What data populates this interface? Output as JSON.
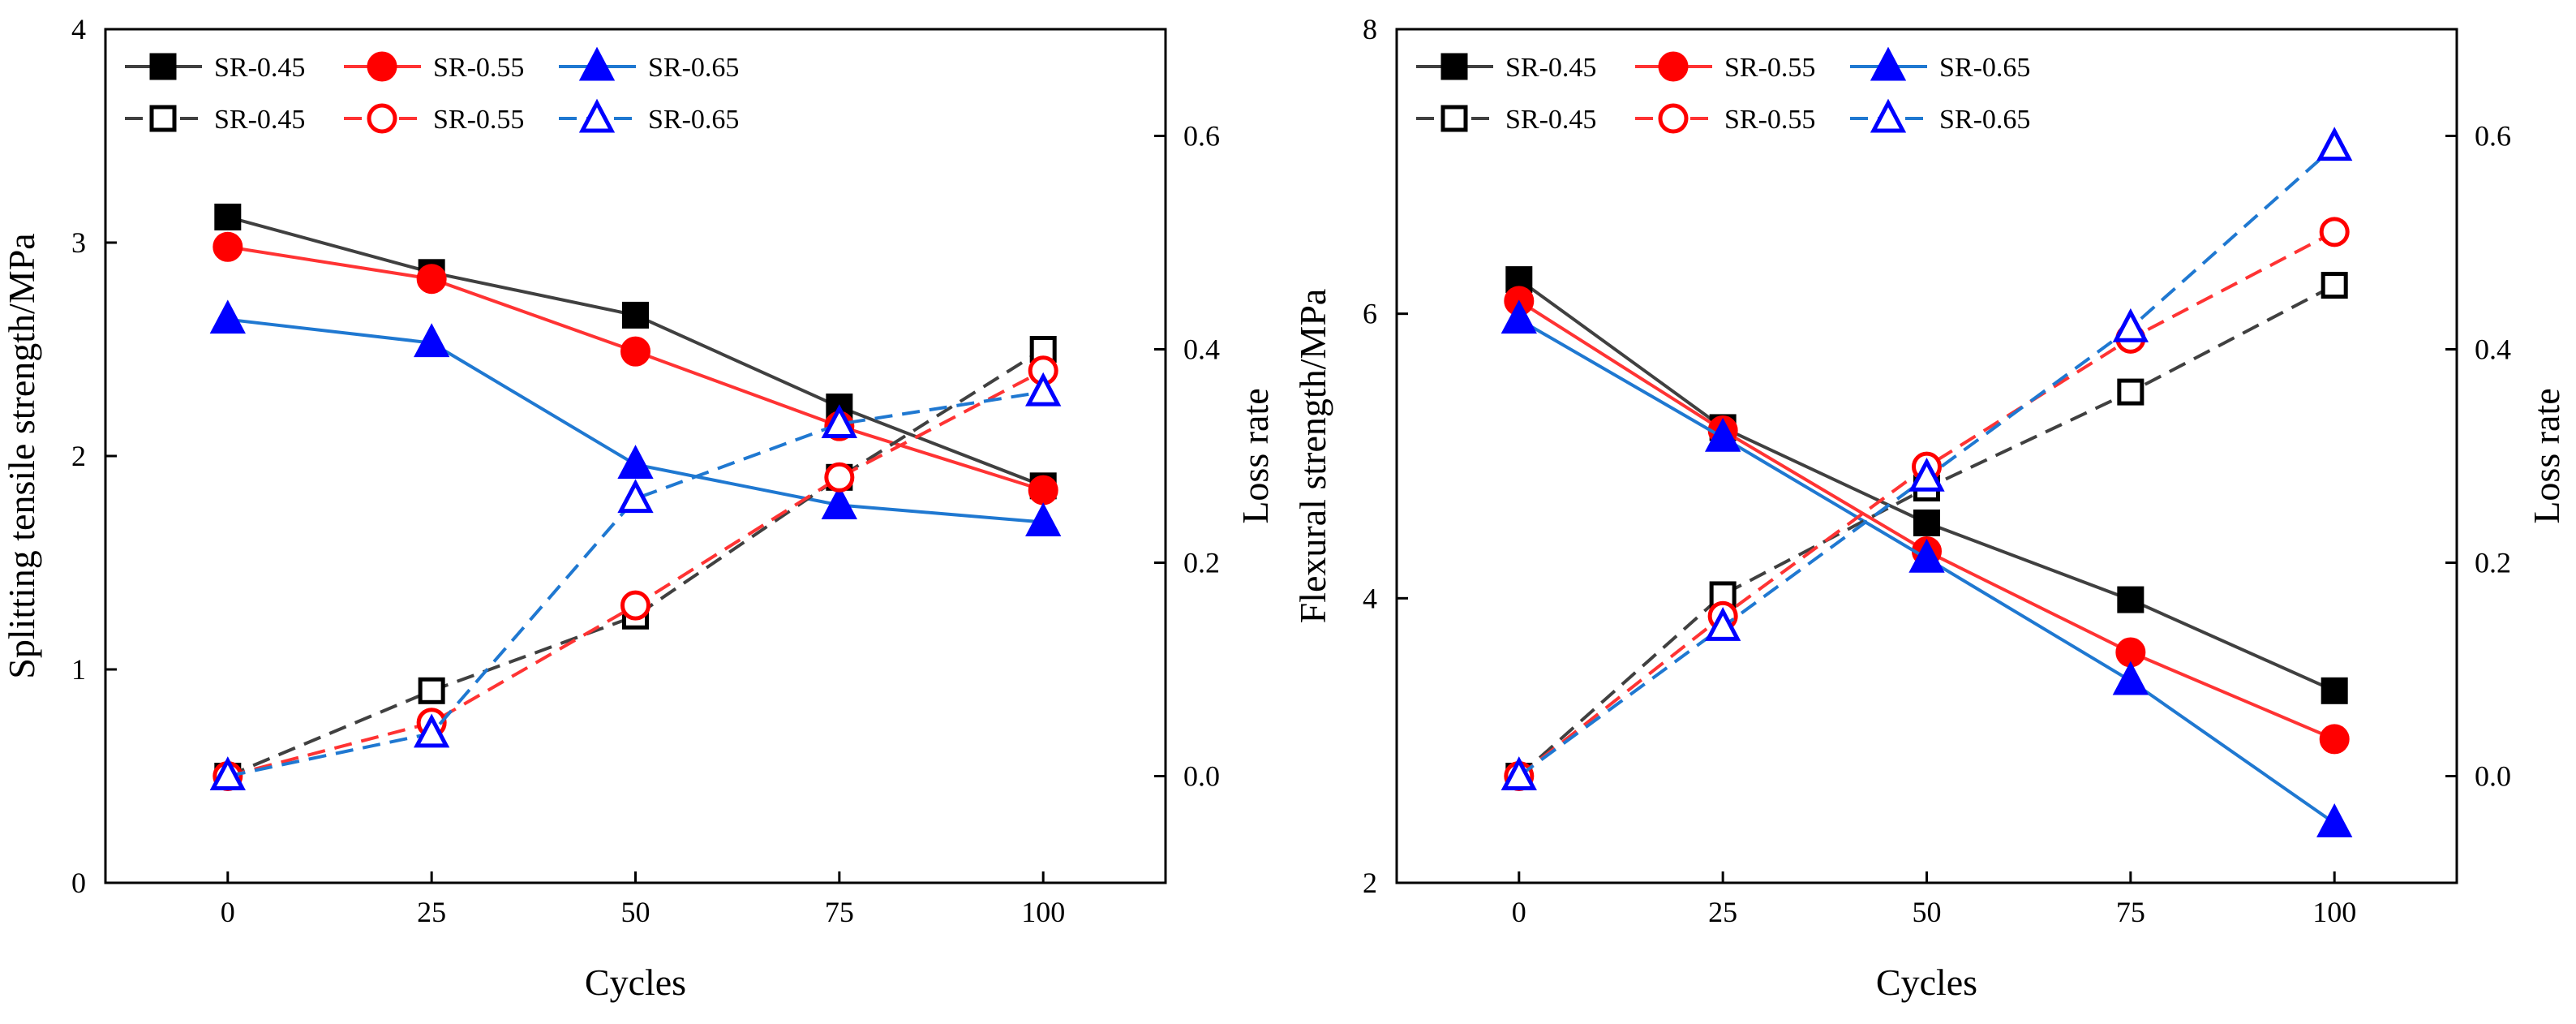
{
  "colors": {
    "black": "#000000",
    "red": "#ff0000",
    "blue": "#0000ff",
    "darkLine": "#404040",
    "redLine": "#ff3333",
    "blueLine": "#1f78d1"
  },
  "chart_data": [
    {
      "type": "line",
      "x": [
        0,
        25,
        50,
        75,
        100
      ],
      "xlabel": "Cycles",
      "xticks": [
        "0",
        "25",
        "50",
        "75",
        "100"
      ],
      "xlim": [
        -15,
        115
      ],
      "ylabel_left": "Splitting tensile  strength/MPa",
      "ylim_left": [
        0,
        4
      ],
      "yticks_left": [
        "0",
        "1",
        "2",
        "3",
        "4"
      ],
      "ylabel_right": "Loss rate",
      "ylim_right": [
        -0.1,
        0.7
      ],
      "yticks_right": [
        "0.0",
        "0.2",
        "0.4",
        "0.6"
      ],
      "legend_position": "top-left",
      "series": [
        {
          "name": "SR-0.45",
          "axis": "left",
          "marker": "square",
          "filled": true,
          "color": "black",
          "values": [
            3.12,
            2.86,
            2.66,
            2.23,
            1.86
          ]
        },
        {
          "name": "SR-0.55",
          "axis": "left",
          "marker": "circle",
          "filled": true,
          "color": "red",
          "values": [
            2.98,
            2.83,
            2.49,
            2.14,
            1.84
          ]
        },
        {
          "name": "SR-0.65",
          "axis": "left",
          "marker": "triangle",
          "filled": true,
          "color": "blue",
          "values": [
            2.64,
            2.53,
            1.96,
            1.77,
            1.69
          ]
        },
        {
          "name": "SR-0.45",
          "axis": "right",
          "marker": "square",
          "filled": false,
          "color": "black",
          "values": [
            0.0,
            0.08,
            0.15,
            0.28,
            0.4
          ]
        },
        {
          "name": "SR-0.55",
          "axis": "right",
          "marker": "circle",
          "filled": false,
          "color": "red",
          "values": [
            0.0,
            0.05,
            0.16,
            0.28,
            0.38
          ]
        },
        {
          "name": "SR-0.65",
          "axis": "right",
          "marker": "triangle",
          "filled": false,
          "color": "blue",
          "values": [
            0.0,
            0.04,
            0.26,
            0.33,
            0.36
          ]
        }
      ]
    },
    {
      "type": "line",
      "x": [
        0,
        25,
        50,
        75,
        100
      ],
      "xlabel": "Cycles",
      "xticks": [
        "0",
        "25",
        "50",
        "75",
        "100"
      ],
      "xlim": [
        -15,
        115
      ],
      "ylabel_left": "Flexural strength/MPa",
      "ylim_left": [
        2,
        8
      ],
      "yticks_left": [
        "2",
        "4",
        "6",
        "8"
      ],
      "ylabel_right": "Loss rate",
      "ylim_right": [
        -0.1,
        0.7
      ],
      "yticks_right": [
        "0.0",
        "0.2",
        "0.4",
        "0.6"
      ],
      "legend_position": "top-left",
      "series": [
        {
          "name": "SR-0.45",
          "axis": "left",
          "marker": "square",
          "filled": true,
          "color": "black",
          "values": [
            6.24,
            5.2,
            4.53,
            3.99,
            3.35
          ]
        },
        {
          "name": "SR-0.55",
          "axis": "left",
          "marker": "circle",
          "filled": true,
          "color": "red",
          "values": [
            6.09,
            5.18,
            4.33,
            3.62,
            3.01
          ]
        },
        {
          "name": "SR-0.65",
          "axis": "left",
          "marker": "triangle",
          "filled": true,
          "color": "blue",
          "values": [
            5.96,
            5.13,
            4.28,
            3.42,
            2.42
          ]
        },
        {
          "name": "SR-0.45",
          "axis": "right",
          "marker": "square",
          "filled": false,
          "color": "black",
          "values": [
            0.0,
            0.17,
            0.27,
            0.36,
            0.46
          ]
        },
        {
          "name": "SR-0.55",
          "axis": "right",
          "marker": "circle",
          "filled": false,
          "color": "red",
          "values": [
            0.0,
            0.15,
            0.29,
            0.41,
            0.51
          ]
        },
        {
          "name": "SR-0.65",
          "axis": "right",
          "marker": "triangle",
          "filled": false,
          "color": "blue",
          "values": [
            0.0,
            0.14,
            0.28,
            0.42,
            0.59
          ]
        }
      ]
    }
  ]
}
